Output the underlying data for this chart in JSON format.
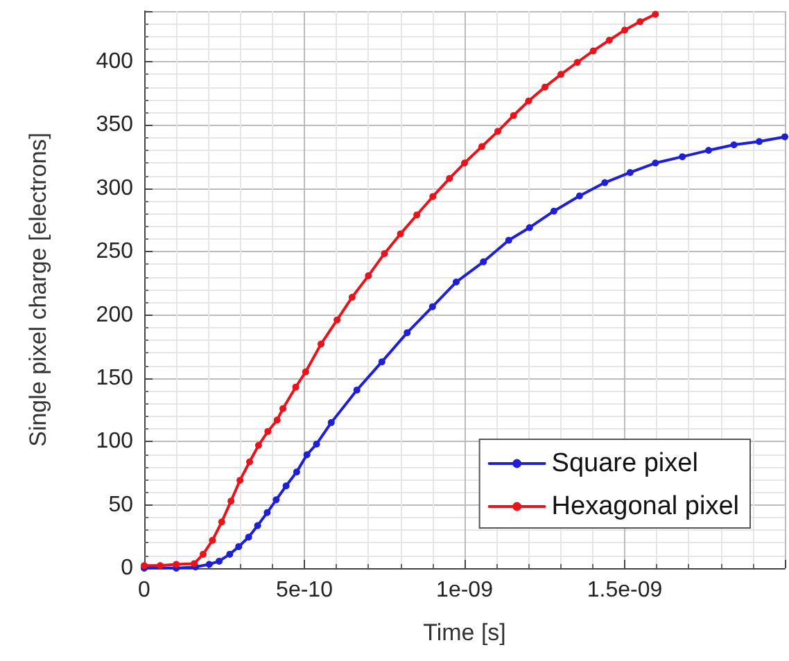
{
  "chart_data": {
    "type": "line",
    "xlabel": "Time [s]",
    "ylabel": "Single pixel charge [electrons]",
    "xlim": [
      0,
      2e-09
    ],
    "xticks": [
      {
        "value": 0,
        "label": "0"
      },
      {
        "value": 5e-10,
        "label": "5e-10"
      },
      {
        "value": 1e-09,
        "label": "1e-09"
      },
      {
        "value": 1.5e-09,
        "label": "1.5e-09"
      },
      {
        "value": 2e-09,
        "label": null
      }
    ],
    "ylim": [
      0,
      440
    ],
    "yticks": [
      0,
      50,
      100,
      150,
      200,
      250,
      300,
      350,
      400
    ],
    "grid": true,
    "legend": "bottom right",
    "marker": "circle",
    "line_style": "solid",
    "series": [
      {
        "name": "Square pixel",
        "color": "#1f1fd6",
        "x": [
          0,
          1e-10,
          1.6e-10,
          2.03e-10,
          2.34e-10,
          2.67e-10,
          2.95e-10,
          3.26e-10,
          3.54e-10,
          3.84e-10,
          4.12e-10,
          4.43e-10,
          4.76e-10,
          5.08e-10,
          5.38e-10,
          5.84e-10,
          6.64e-10,
          7.42e-10,
          8.21e-10,
          9e-10,
          9.74e-10,
          1.059e-09,
          1.138e-09,
          1.203e-09,
          1.279e-09,
          1.359e-09,
          1.438e-09,
          1.517e-09,
          1.596e-09,
          1.68e-09,
          1.762e-09,
          1.841e-09,
          1.92e-09,
          2e-09
        ],
        "values": [
          0,
          0,
          1,
          3,
          5.5,
          11,
          17,
          24.5,
          33.6,
          43.9,
          54,
          65,
          76,
          89.6,
          98,
          115,
          140.7,
          163,
          186,
          206.5,
          226,
          242,
          259,
          269,
          282,
          294,
          304.5,
          312.5,
          320,
          325,
          330,
          334.4,
          337,
          340.7
        ]
      },
      {
        "name": "Hexagonal pixel",
        "color": "#e8141c",
        "x": [
          0,
          5e-11,
          1e-10,
          1.56e-10,
          1.84e-10,
          2.13e-10,
          2.42e-10,
          2.71e-10,
          2.99e-10,
          3.29e-10,
          3.57e-10,
          3.86e-10,
          4.15e-10,
          4.33e-10,
          4.73e-10,
          5.04e-10,
          5.52e-10,
          6.02e-10,
          6.49e-10,
          7e-10,
          7.5e-10,
          8e-10,
          8.51e-10,
          9.01e-10,
          9.53e-10,
          1e-09,
          1.054e-09,
          1.104e-09,
          1.153e-09,
          1.2e-09,
          1.251e-09,
          1.301e-09,
          1.352e-09,
          1.402e-09,
          1.452e-09,
          1.5e-09,
          1.548e-09,
          1.596e-09
        ],
        "values": [
          2,
          2,
          3,
          3.6,
          11,
          22,
          36.5,
          53,
          69.4,
          84,
          97,
          108,
          117,
          126,
          143,
          155,
          177,
          196,
          214,
          231,
          248.5,
          264,
          279,
          293.5,
          307.8,
          320,
          333,
          345,
          357.5,
          369,
          380,
          390,
          399.5,
          408.6,
          417,
          425,
          431.6,
          437.5
        ]
      }
    ]
  }
}
